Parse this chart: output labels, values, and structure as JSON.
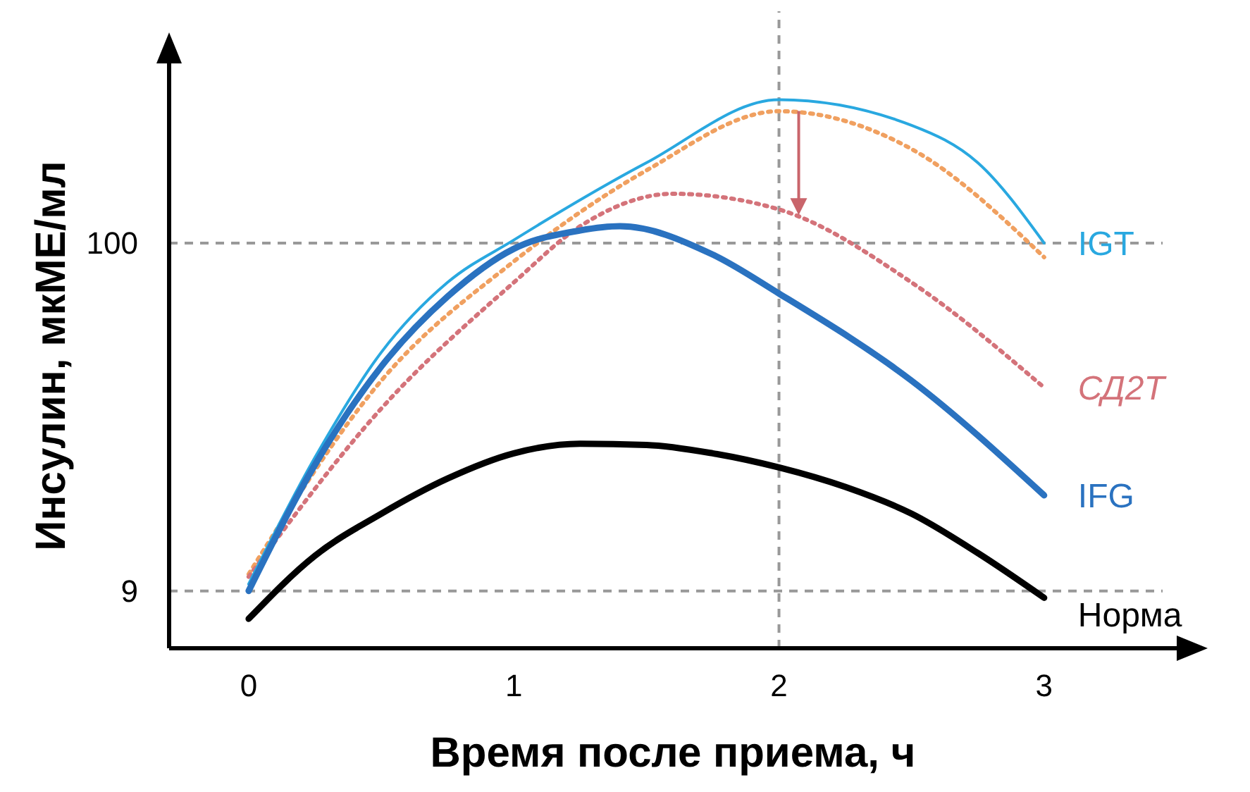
{
  "chart_data": {
    "type": "line",
    "xlabel": "Время после приема, ч",
    "ylabel": "Инсулин, мкМЕ/мл",
    "xlim": [
      -0.3,
      3.5
    ],
    "ylim": [
      -6,
      147
    ],
    "xticks": [
      0,
      1,
      2,
      3
    ],
    "yticks": [
      9,
      100
    ],
    "grid": false,
    "ref_lines": [
      {
        "axis": "y",
        "value": 100,
        "color": "#999999",
        "line_style": "dashed"
      },
      {
        "axis": "y",
        "value": 9,
        "color": "#999999",
        "line_style": "dashed"
      },
      {
        "axis": "x",
        "value": 2,
        "color": "#999999",
        "line_style": "dashed"
      }
    ],
    "series": [
      {
        "name": null,
        "color": "#f0a060",
        "line_style": "dotted",
        "x": [
          0,
          0.5,
          1,
          1.5,
          2,
          2.5,
          3
        ],
        "values": [
          13.4,
          64,
          95.2,
          119,
          134.5,
          124.6,
          96.3
        ]
      },
      {
        "name": "СД2Т",
        "color": "#d4737a",
        "line_style": "dotted",
        "x": [
          0,
          0.5,
          1,
          1.25,
          1.6,
          2,
          2.5,
          3
        ],
        "values": [
          12.7,
          56.7,
          89.7,
          104.4,
          112.9,
          108.8,
          89.7,
          62.2
        ]
      },
      {
        "name": "IGT",
        "color": "#29a8e0",
        "line_style": "solid",
        "x": [
          0,
          0.25,
          0.5,
          0.75,
          1,
          1.5,
          2,
          2.5,
          2.75,
          3
        ],
        "values": [
          10.8,
          43.9,
          71.4,
          89.7,
          100.8,
          121,
          137.5,
          130.8,
          121,
          100
        ]
      },
      {
        "name": "IFG",
        "color": "#2a72c0",
        "line_style": "solid",
        "x": [
          0,
          0.25,
          0.5,
          0.75,
          1,
          1.25,
          1.4,
          1.75,
          2,
          2.5,
          3
        ],
        "values": [
          9,
          42,
          67.7,
          86,
          98.5,
          103.3,
          104.4,
          97,
          86.8,
          64,
          34
        ]
      },
      {
        "name": "Норма",
        "color": "#000000",
        "line_style": "solid",
        "x": [
          0,
          0.25,
          0.5,
          0.75,
          1,
          1.25,
          1.5,
          1.75,
          2,
          2.25,
          2.5,
          2.75,
          3
        ],
        "values": [
          1.7,
          18.2,
          29.2,
          38.4,
          45,
          47.5,
          47.2,
          45,
          41.3,
          36.2,
          29.2,
          18.9,
          7.2
        ]
      }
    ]
  }
}
